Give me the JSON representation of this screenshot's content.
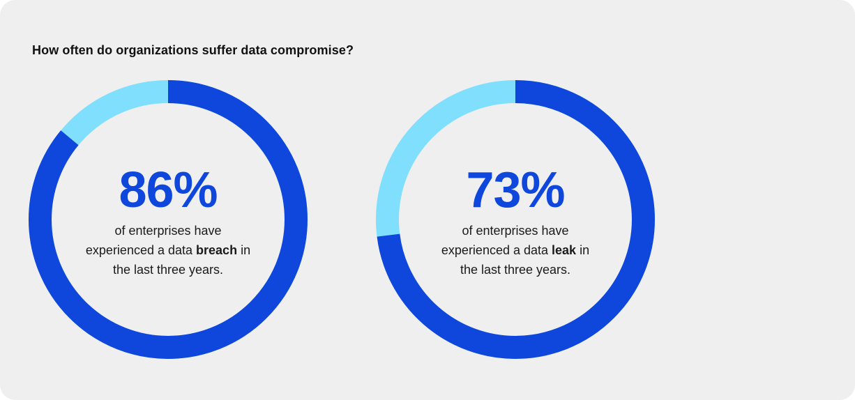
{
  "title": "How often do organizations suffer data compromise?",
  "colors": {
    "primary": "#0f46dc",
    "secondary": "#7fdffc",
    "background": "#efeff0"
  },
  "chart_data": [
    {
      "type": "pie",
      "values": [
        86,
        14
      ],
      "big_label": "86%",
      "description": {
        "line1": "of enterprises have",
        "line2_pre": "experienced a data ",
        "line2_bold": "breach",
        "line2_post": " in",
        "line3": "the last three years."
      }
    },
    {
      "type": "pie",
      "values": [
        73,
        27
      ],
      "big_label": "73%",
      "description": {
        "line1": "of enterprises have",
        "line2_pre": "experienced a data ",
        "line2_bold": "leak",
        "line2_post": " in",
        "line3": "the last three years."
      }
    }
  ]
}
